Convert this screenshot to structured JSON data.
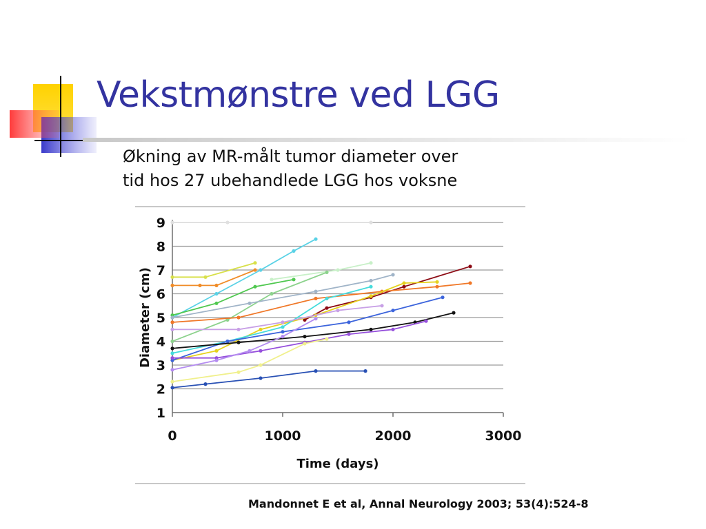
{
  "slide": {
    "title": "Vekstmønstre ved LGG",
    "subtitle_line1": "Økning av MR-målt tumor diameter over",
    "subtitle_line2": "tid hos 27 ubehandlede LGG hos voksne",
    "citation": "Mandonnet E et al, Annal Neurology 2003; 53(4):524-8",
    "logo_colors": {
      "yellow": "#ffd200",
      "red": "#ff4040",
      "blue": "#3535c8",
      "line": "#000000"
    }
  },
  "chart_data": {
    "type": "line",
    "title": "",
    "xlabel": "Time (days)",
    "ylabel": "Diameter (cm)",
    "xlim": [
      0,
      3000
    ],
    "ylim": [
      1,
      9
    ],
    "xticks": [
      "0",
      "1000",
      "2000",
      "3000"
    ],
    "yticks": [
      "1",
      "2",
      "3",
      "4",
      "5",
      "6",
      "7",
      "8",
      "9"
    ],
    "grid": "horizontal",
    "series": [
      {
        "color": "#e0e0e0",
        "points": [
          [
            0,
            9.0
          ],
          [
            500,
            9.0
          ],
          [
            1800,
            9.0
          ]
        ]
      },
      {
        "color": "#5ad2e6",
        "points": [
          [
            0,
            5.0
          ],
          [
            400,
            6.0
          ],
          [
            800,
            7.0
          ],
          [
            1100,
            7.8
          ],
          [
            1300,
            8.3
          ]
        ]
      },
      {
        "color": "#d8e04a",
        "points": [
          [
            0,
            6.7
          ],
          [
            300,
            6.7
          ],
          [
            750,
            7.3
          ]
        ]
      },
      {
        "color": "#f08c28",
        "points": [
          [
            0,
            6.35
          ],
          [
            250,
            6.35
          ],
          [
            400,
            6.35
          ],
          [
            750,
            7.0
          ]
        ]
      },
      {
        "color": "#c8f0c8",
        "points": [
          [
            900,
            6.6
          ],
          [
            1500,
            7.0
          ],
          [
            1800,
            7.3
          ]
        ]
      },
      {
        "color": "#50c850",
        "points": [
          [
            0,
            5.1
          ],
          [
            400,
            5.6
          ],
          [
            750,
            6.3
          ],
          [
            1100,
            6.6
          ]
        ]
      },
      {
        "color": "#8cd28c",
        "points": [
          [
            0,
            4.0
          ],
          [
            500,
            4.9
          ],
          [
            900,
            6.0
          ],
          [
            1400,
            6.9
          ]
        ]
      },
      {
        "color": "#a0b4c8",
        "points": [
          [
            0,
            5.0
          ],
          [
            700,
            5.6
          ],
          [
            1300,
            6.1
          ],
          [
            1800,
            6.55
          ],
          [
            2000,
            6.8
          ]
        ]
      },
      {
        "color": "#8c0a14",
        "points": [
          [
            1200,
            4.9
          ],
          [
            1400,
            5.4
          ],
          [
            1800,
            5.85
          ],
          [
            2100,
            6.3
          ],
          [
            2700,
            7.15
          ]
        ]
      },
      {
        "color": "#f07828",
        "points": [
          [
            0,
            4.8
          ],
          [
            600,
            5.0
          ],
          [
            1300,
            5.8
          ],
          [
            1900,
            6.1
          ],
          [
            2400,
            6.3
          ],
          [
            2700,
            6.45
          ]
        ]
      },
      {
        "color": "#e6d21e",
        "points": [
          [
            0,
            3.2
          ],
          [
            400,
            3.6
          ],
          [
            800,
            4.5
          ],
          [
            1300,
            5.1
          ],
          [
            1800,
            5.9
          ],
          [
            2100,
            6.45
          ],
          [
            2400,
            6.5
          ]
        ]
      },
      {
        "color": "#46dcdc",
        "points": [
          [
            0,
            3.5
          ],
          [
            500,
            4.0
          ],
          [
            1000,
            4.6
          ],
          [
            1400,
            5.8
          ],
          [
            1800,
            6.3
          ]
        ]
      },
      {
        "color": "#c8a0e6",
        "points": [
          [
            0,
            4.5
          ],
          [
            600,
            4.5
          ],
          [
            1000,
            4.8
          ],
          [
            1500,
            5.3
          ],
          [
            1900,
            5.5
          ]
        ]
      },
      {
        "color": "#3c64dc",
        "points": [
          [
            0,
            3.2
          ],
          [
            500,
            4.0
          ],
          [
            1000,
            4.4
          ],
          [
            1600,
            4.8
          ],
          [
            2000,
            5.3
          ],
          [
            2450,
            5.85
          ]
        ]
      },
      {
        "color": "#141414",
        "points": [
          [
            0,
            3.7
          ],
          [
            600,
            3.95
          ],
          [
            1200,
            4.2
          ],
          [
            1800,
            4.5
          ],
          [
            2200,
            4.8
          ],
          [
            2550,
            5.2
          ]
        ]
      },
      {
        "color": "#9650dc",
        "points": [
          [
            0,
            3.3
          ],
          [
            400,
            3.3
          ],
          [
            800,
            3.6
          ],
          [
            1200,
            3.95
          ],
          [
            1600,
            4.3
          ],
          [
            2000,
            4.5
          ],
          [
            2300,
            4.85
          ]
        ]
      },
      {
        "color": "#b48cf0",
        "points": [
          [
            0,
            2.8
          ],
          [
            400,
            3.2
          ],
          [
            700,
            3.6
          ],
          [
            1000,
            4.2
          ],
          [
            1300,
            4.95
          ]
        ]
      },
      {
        "color": "#f0f08c",
        "points": [
          [
            0,
            2.3
          ],
          [
            600,
            2.7
          ],
          [
            800,
            3.0
          ],
          [
            1200,
            3.9
          ],
          [
            1400,
            4.1
          ]
        ]
      },
      {
        "color": "#2850b4",
        "points": [
          [
            0,
            2.05
          ],
          [
            300,
            2.2
          ],
          [
            800,
            2.45
          ],
          [
            1300,
            2.75
          ],
          [
            1750,
            2.75
          ]
        ]
      }
    ]
  }
}
